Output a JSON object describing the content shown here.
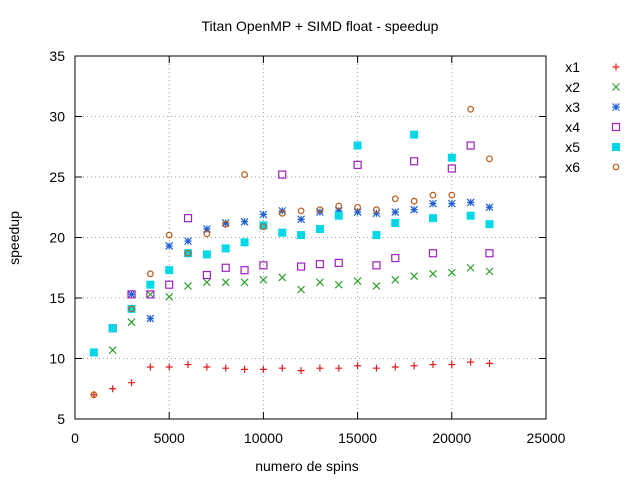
{
  "chart_data": {
    "type": "scatter",
    "title": "Titan OpenMP + SIMD float - speedup",
    "xlabel": "numero de spins",
    "ylabel": "speedup",
    "xlim": [
      0,
      25000
    ],
    "ylim": [
      5,
      35
    ],
    "x_ticks": [
      0,
      5000,
      10000,
      15000,
      20000,
      25000
    ],
    "y_ticks": [
      5,
      10,
      15,
      20,
      25,
      30,
      35
    ],
    "grid": true,
    "legend_position": "outside-right",
    "series": [
      {
        "name": "x1",
        "marker": "plus",
        "color": "#e41a1c",
        "points": [
          [
            1000,
            7.0
          ],
          [
            2000,
            7.5
          ],
          [
            3000,
            8.0
          ],
          [
            4000,
            9.3
          ],
          [
            5000,
            9.3
          ],
          [
            6000,
            9.5
          ],
          [
            7000,
            9.3
          ],
          [
            8000,
            9.2
          ],
          [
            9000,
            9.1
          ],
          [
            10000,
            9.1
          ],
          [
            11000,
            9.2
          ],
          [
            12000,
            9.0
          ],
          [
            13000,
            9.2
          ],
          [
            14000,
            9.2
          ],
          [
            15000,
            9.4
          ],
          [
            16000,
            9.2
          ],
          [
            17000,
            9.3
          ],
          [
            18000,
            9.4
          ],
          [
            19000,
            9.5
          ],
          [
            20000,
            9.5
          ],
          [
            21000,
            9.7
          ],
          [
            22000,
            9.6
          ]
        ]
      },
      {
        "name": "x2",
        "marker": "cross",
        "color": "#2ca02c",
        "points": [
          [
            2000,
            10.7
          ],
          [
            3000,
            13.0
          ],
          [
            4000,
            15.3
          ],
          [
            5000,
            15.1
          ],
          [
            6000,
            16.0
          ],
          [
            7000,
            16.3
          ],
          [
            8000,
            16.3
          ],
          [
            9000,
            16.3
          ],
          [
            10000,
            16.5
          ],
          [
            11000,
            16.7
          ],
          [
            12000,
            15.7
          ],
          [
            13000,
            16.3
          ],
          [
            14000,
            16.1
          ],
          [
            15000,
            16.4
          ],
          [
            16000,
            16.0
          ],
          [
            17000,
            16.5
          ],
          [
            18000,
            16.8
          ],
          [
            19000,
            17.0
          ],
          [
            20000,
            17.1
          ],
          [
            21000,
            17.5
          ],
          [
            22000,
            17.2
          ]
        ]
      },
      {
        "name": "x3",
        "marker": "star",
        "color": "#1f5fd6",
        "points": [
          [
            2000,
            12.5
          ],
          [
            3000,
            15.3
          ],
          [
            4000,
            13.3
          ],
          [
            5000,
            19.3
          ],
          [
            6000,
            19.7
          ],
          [
            7000,
            20.7
          ],
          [
            8000,
            21.2
          ],
          [
            9000,
            21.3
          ],
          [
            10000,
            21.9
          ],
          [
            11000,
            22.2
          ],
          [
            12000,
            21.5
          ],
          [
            13000,
            22.1
          ],
          [
            14000,
            22.2
          ],
          [
            15000,
            22.1
          ],
          [
            16000,
            22.0
          ],
          [
            17000,
            22.1
          ],
          [
            18000,
            22.3
          ],
          [
            19000,
            22.8
          ],
          [
            20000,
            22.8
          ],
          [
            21000,
            22.9
          ],
          [
            22000,
            22.5
          ]
        ]
      },
      {
        "name": "x4",
        "marker": "open-square",
        "color": "#a020c0",
        "points": [
          [
            2000,
            12.5
          ],
          [
            3000,
            15.3
          ],
          [
            4000,
            15.3
          ],
          [
            5000,
            16.1
          ],
          [
            6000,
            21.6
          ],
          [
            7000,
            16.9
          ],
          [
            8000,
            17.5
          ],
          [
            9000,
            17.3
          ],
          [
            10000,
            17.7
          ],
          [
            11000,
            25.2
          ],
          [
            12000,
            17.6
          ],
          [
            13000,
            17.8
          ],
          [
            14000,
            17.9
          ],
          [
            15000,
            26.0
          ],
          [
            16000,
            17.7
          ],
          [
            17000,
            18.3
          ],
          [
            18000,
            26.3
          ],
          [
            19000,
            18.7
          ],
          [
            20000,
            25.7
          ],
          [
            21000,
            27.6
          ],
          [
            22000,
            18.7
          ]
        ]
      },
      {
        "name": "x5",
        "marker": "filled-square",
        "color": "#00d8e8",
        "points": [
          [
            1000,
            10.5
          ],
          [
            2000,
            12.5
          ],
          [
            3000,
            14.1
          ],
          [
            4000,
            16.1
          ],
          [
            5000,
            17.3
          ],
          [
            6000,
            18.7
          ],
          [
            7000,
            18.6
          ],
          [
            8000,
            19.1
          ],
          [
            9000,
            19.6
          ],
          [
            10000,
            21.0
          ],
          [
            11000,
            20.4
          ],
          [
            12000,
            20.2
          ],
          [
            13000,
            20.7
          ],
          [
            14000,
            21.8
          ],
          [
            15000,
            27.6
          ],
          [
            16000,
            20.2
          ],
          [
            17000,
            21.2
          ],
          [
            18000,
            28.5
          ],
          [
            19000,
            21.6
          ],
          [
            20000,
            26.6
          ],
          [
            21000,
            21.8
          ],
          [
            22000,
            21.1
          ]
        ]
      },
      {
        "name": "x6",
        "marker": "open-circle",
        "color": "#b85c1a",
        "points": [
          [
            1000,
            7.0
          ],
          [
            3000,
            14.1
          ],
          [
            4000,
            17.0
          ],
          [
            5000,
            20.2
          ],
          [
            6000,
            18.7
          ],
          [
            7000,
            20.3
          ],
          [
            8000,
            21.1
          ],
          [
            9000,
            25.2
          ],
          [
            10000,
            20.9
          ],
          [
            11000,
            22.0
          ],
          [
            12000,
            22.2
          ],
          [
            13000,
            22.3
          ],
          [
            14000,
            22.6
          ],
          [
            15000,
            22.5
          ],
          [
            16000,
            22.3
          ],
          [
            17000,
            23.2
          ],
          [
            18000,
            23.0
          ],
          [
            19000,
            23.5
          ],
          [
            20000,
            23.5
          ],
          [
            21000,
            30.6
          ],
          [
            22000,
            26.5
          ]
        ]
      }
    ]
  }
}
